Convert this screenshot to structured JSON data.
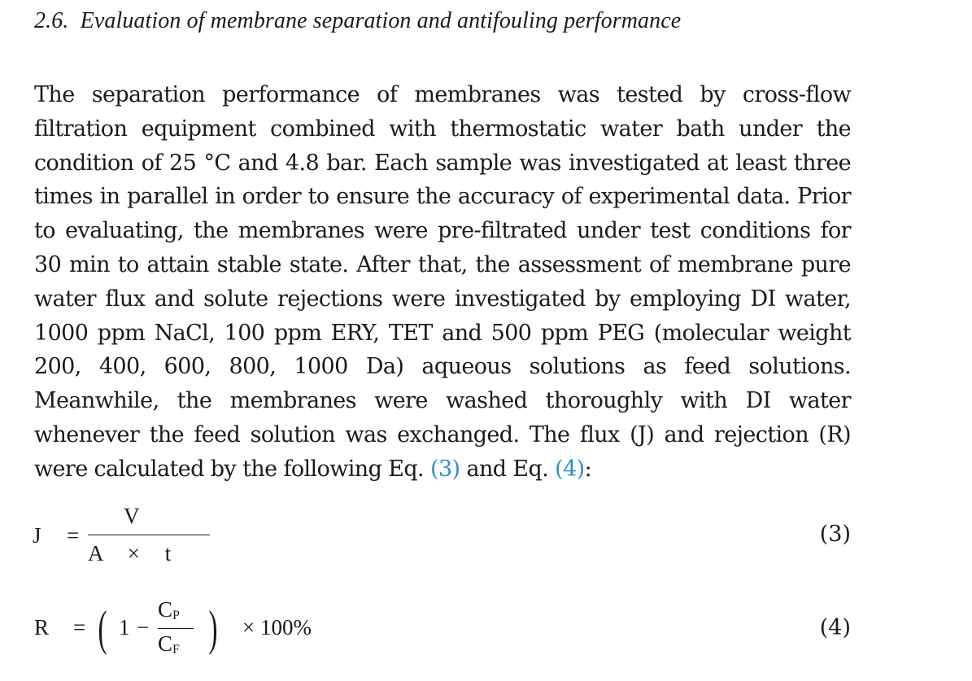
{
  "section": {
    "number": "2.6.",
    "title": "Evaluation of membrane separation and antifouling performance"
  },
  "paragraph": {
    "text_before_eq3": "The separation performance of membranes was tested by cross-flow filtration equipment combined with thermostatic water bath under the condition of 25 °C and 4.8 bar. Each sample was investigated at least three times in parallel in order to ensure the accuracy of experimental data. Prior to evaluating, the membranes were pre-filtrated under test conditions for 30 min to attain stable state. After that, the assessment of membrane pure water flux and solute rejections were investigated by employing DI water, 1000 ppm NaCl, 100 ppm ERY, TET and 500 ppm PEG (molecular weight 200, 400, 600, 800, 1000 Da) aqueous solutions as feed solutions. Meanwhile, the membranes were washed thoroughly with DI water whenever the feed solution was exchanged. The flux (J) and rejection (R) were calculated by the following Eq. ",
    "eq3_ref": "(3)",
    "between": " and Eq. ",
    "eq4_ref": "(4)",
    "end": ":"
  },
  "equation3": {
    "lhs": "J",
    "equals": "=",
    "numerator": "V",
    "denominator": "A × t",
    "number": "(3)"
  },
  "equation4": {
    "lhs": "R",
    "equals": "=",
    "one": "1",
    "minus": "−",
    "num_main": "C",
    "num_sub": "P",
    "den_main": "C",
    "den_sub": "F",
    "times_pct": "× 100%",
    "number": "(4)"
  },
  "colors": {
    "link": "#2a8fce",
    "text": "#1a1a1a"
  }
}
